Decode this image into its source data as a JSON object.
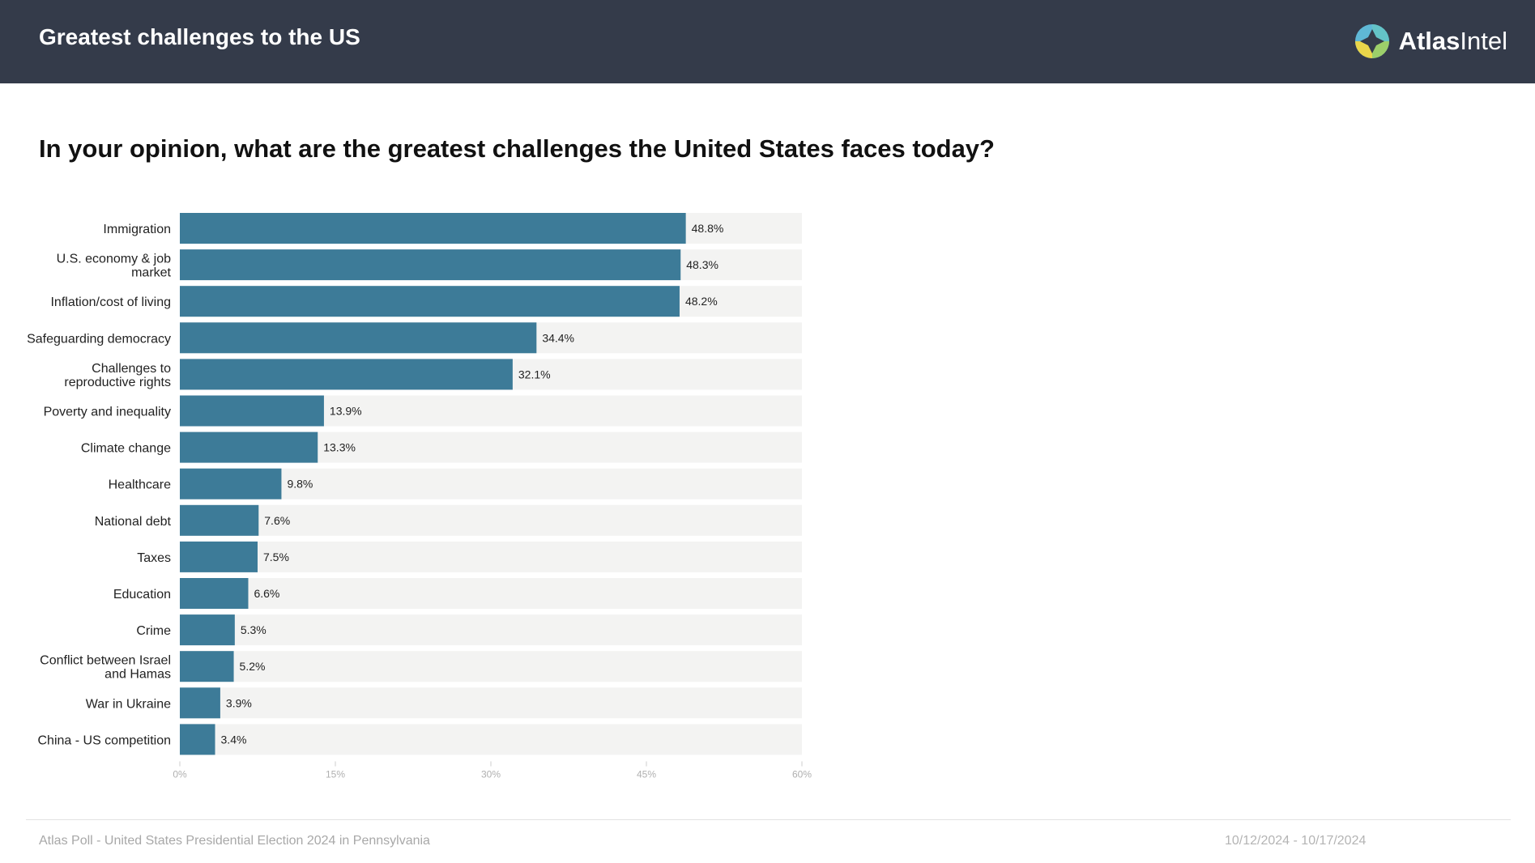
{
  "header": {
    "title": "Greatest challenges to the US",
    "logo_text_bold": "Atlas",
    "logo_text_light": "Intel"
  },
  "question": "In your opinion, what are the greatest challenges the United States faces today?",
  "chart_data": {
    "type": "bar",
    "orientation": "horizontal",
    "categories": [
      "Immigration",
      "U.S. economy & job market",
      "Inflation/cost of living",
      "Safeguarding democracy",
      "Challenges to reproductive rights",
      "Poverty and inequality",
      "Climate change",
      "Healthcare",
      "National debt",
      "Taxes",
      "Education",
      "Crime",
      "Conflict between Israel and Hamas",
      "War in Ukraine",
      "China - US competition"
    ],
    "category_lines": [
      [
        "Immigration"
      ],
      [
        "U.S. economy & job",
        "market"
      ],
      [
        "Inflation/cost of living"
      ],
      [
        "Safeguarding democracy"
      ],
      [
        "Challenges to",
        "reproductive rights"
      ],
      [
        "Poverty and inequality"
      ],
      [
        "Climate change"
      ],
      [
        "Healthcare"
      ],
      [
        "National debt"
      ],
      [
        "Taxes"
      ],
      [
        "Education"
      ],
      [
        "Crime"
      ],
      [
        "Conflict between Israel",
        "and Hamas"
      ],
      [
        "War in Ukraine"
      ],
      [
        "China - US competition"
      ]
    ],
    "values": [
      48.8,
      48.3,
      48.2,
      34.4,
      32.1,
      13.9,
      13.3,
      9.8,
      7.6,
      7.5,
      6.6,
      5.3,
      5.2,
      3.9,
      3.4
    ],
    "value_labels": [
      "48.8%",
      "48.3%",
      "48.2%",
      "34.4%",
      "32.1%",
      "13.9%",
      "13.3%",
      "9.8%",
      "7.6%",
      "7.5%",
      "6.6%",
      "5.3%",
      "5.2%",
      "3.9%",
      "3.4%"
    ],
    "xlim": [
      0,
      60
    ],
    "ticks": [
      0,
      15,
      30,
      45,
      60
    ],
    "tick_labels": [
      "0%",
      "15%",
      "30%",
      "45%",
      "60%"
    ],
    "title": "",
    "xlabel": "",
    "ylabel": "",
    "bar_color": "#3d7b98",
    "track_color": "#f3f3f2",
    "grid": false,
    "legend": "none"
  },
  "footer": {
    "source": "Atlas Poll - United States Presidential Election 2024 in Pennsylvania",
    "dates": "10/12/2024 - 10/17/2024"
  }
}
